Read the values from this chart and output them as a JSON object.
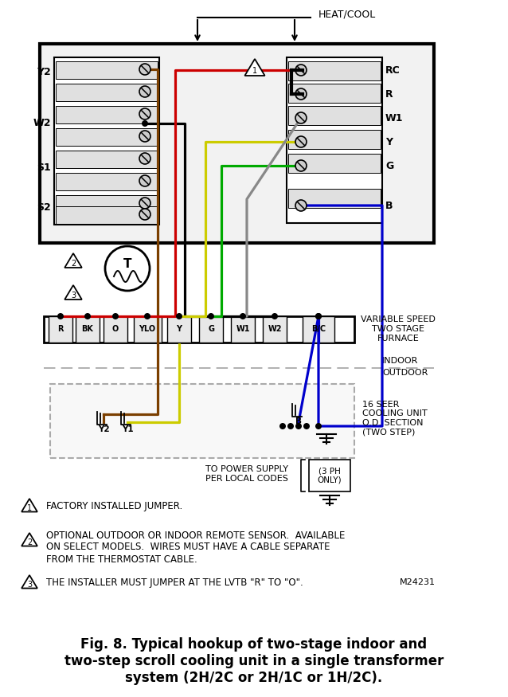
{
  "title": "Fig. 8. Typical hookup of two-stage indoor and\ntwo-step scroll cooling unit in a single transformer\nsystem (2H/2C or 2H/1C or 1H/2C).",
  "bg_color": "#ffffff",
  "note1": "FACTORY INSTALLED JUMPER.",
  "note2_1": "OPTIONAL OUTDOOR OR INDOOR REMOTE SENSOR.  AVAILABLE",
  "note2_2": "ON SELECT MODELS.  WIRES MUST HAVE A CABLE SEPARATE",
  "note2_3": "FROM THE THERMOSTAT CABLE.",
  "note3": "THE INSTALLER MUST JUMPER AT THE LVTB \"R\" TO \"O\".",
  "model_no": "M24231",
  "heat_cool_label": "HEAT/COOL",
  "left_labels": [
    "Y2",
    "W2",
    "S1",
    "S2"
  ],
  "right_labels": [
    "RC",
    "R",
    "W1",
    "Y",
    "G",
    "B"
  ],
  "furnace_labels": [
    "R",
    "BK",
    "O",
    "YLO",
    "Y",
    "G",
    "W1",
    "W2",
    "B/C"
  ],
  "furnace_text": "VARIABLE SPEED\nTWO STAGE\nFURNACE",
  "indoor_text": "INDOOR",
  "outdoor_text": "OUTDOOR",
  "cooling_text": "16 SEER\nCOOLING UNIT\nO.D. SECTION\n(TWO STEP)",
  "power_text": "TO POWER SUPPLY\nPER LOCAL CODES",
  "ph_text": "(3 PH\nONLY)",
  "colors": {
    "red": "#cc0000",
    "black": "#000000",
    "brown": "#7B3F00",
    "yellow": "#cccc00",
    "green": "#00aa00",
    "gray": "#888888",
    "blue": "#0000cc",
    "white": "#ffffff",
    "lgray": "#cccccc",
    "boxgray": "#e8e8e8",
    "dashgray": "#aaaaaa"
  }
}
